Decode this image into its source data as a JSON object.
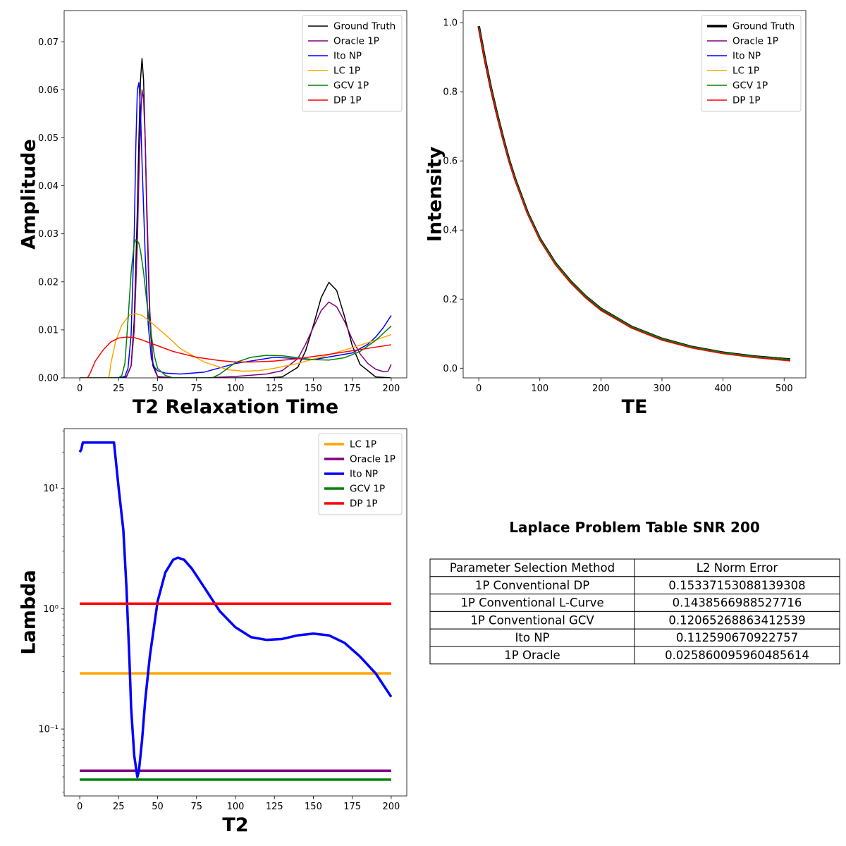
{
  "chart_data": [
    {
      "type": "line",
      "xlabel": "T2 Relaxation Time",
      "ylabel": "Amplitude",
      "xlim": [
        -10,
        210
      ],
      "ylim": [
        0,
        0.0765
      ],
      "xticks": [
        0,
        25,
        50,
        75,
        100,
        125,
        150,
        175,
        200
      ],
      "xtick_labels": [
        "0",
        "25",
        "50",
        "75",
        "100",
        "125",
        "150",
        "175",
        "200"
      ],
      "yticks": [
        0,
        0.01,
        0.02,
        0.03,
        0.04,
        0.05,
        0.06,
        0.07
      ],
      "ytick_labels": [
        "0.00",
        "0.01",
        "0.02",
        "0.03",
        "0.04",
        "0.05",
        "0.06",
        "0.07"
      ],
      "legend_position": "top-right",
      "series": [
        {
          "name": "Ground Truth",
          "color": "#000000",
          "x": [
            0,
            25,
            30,
            33,
            35,
            37,
            38,
            39,
            40,
            41,
            42,
            43,
            45,
            47,
            50,
            60,
            80,
            100,
            120,
            130,
            140,
            145,
            150,
            155,
            160,
            165,
            170,
            175,
            180,
            190,
            200
          ],
          "y": [
            0,
            0,
            0.0002,
            0.0025,
            0.012,
            0.035,
            0.05,
            0.062,
            0.0665,
            0.062,
            0.05,
            0.035,
            0.012,
            0.0025,
            0.0002,
            0,
            0,
            0,
            0,
            0.0002,
            0.0022,
            0.0056,
            0.0109,
            0.0167,
            0.0199,
            0.0182,
            0.0128,
            0.0067,
            0.0028,
            0.0002,
            0
          ]
        },
        {
          "name": "Oracle 1P",
          "color": "#800080",
          "x": [
            0,
            25,
            30,
            33,
            35,
            37,
            38,
            39,
            40,
            41,
            42,
            43,
            45,
            47,
            50,
            60,
            80,
            100,
            120,
            130,
            140,
            145,
            150,
            155,
            160,
            165,
            170,
            175,
            180,
            185,
            190,
            195,
            198,
            200
          ],
          "y": [
            0,
            0,
            0.0003,
            0.0025,
            0.01,
            0.028,
            0.042,
            0.053,
            0.06,
            0.058,
            0.05,
            0.037,
            0.014,
            0.003,
            0.0003,
            0,
            0,
            0.0003,
            0.0008,
            0.0015,
            0.004,
            0.007,
            0.0105,
            0.014,
            0.0158,
            0.0148,
            0.0118,
            0.008,
            0.005,
            0.003,
            0.0018,
            0.0013,
            0.0014,
            0.0028
          ]
        },
        {
          "name": "Ito NP",
          "color": "#0000ff",
          "x": [
            0,
            25,
            29,
            31,
            33,
            35,
            36,
            37,
            38,
            39,
            40,
            42,
            44,
            46,
            48,
            50,
            55,
            65,
            80,
            100,
            125,
            150,
            175,
            185,
            190,
            195,
            200
          ],
          "y": [
            0,
            0,
            0.0003,
            0.002,
            0.009,
            0.03,
            0.048,
            0.06,
            0.0615,
            0.056,
            0.045,
            0.026,
            0.011,
            0.004,
            0.0022,
            0.0015,
            0.001,
            0.0008,
            0.0012,
            0.003,
            0.0043,
            0.0038,
            0.0052,
            0.007,
            0.0085,
            0.0105,
            0.013
          ]
        },
        {
          "name": "LC 1P",
          "color": "#ffa500",
          "x": [
            0,
            18,
            19,
            20,
            23,
            27,
            32,
            36,
            40,
            45,
            55,
            65,
            80,
            95,
            105,
            115,
            125,
            140,
            160,
            180,
            200
          ],
          "y": [
            0,
            0,
            0.0005,
            0.003,
            0.0075,
            0.011,
            0.0131,
            0.0134,
            0.013,
            0.0118,
            0.009,
            0.006,
            0.0033,
            0.0017,
            0.0014,
            0.0015,
            0.002,
            0.003,
            0.0048,
            0.0068,
            0.009
          ]
        },
        {
          "name": "GCV 1P",
          "color": "#008000",
          "x": [
            0,
            25,
            27,
            29,
            31,
            33,
            35,
            36,
            37,
            38,
            39,
            41,
            43,
            45,
            48,
            50,
            55,
            60,
            85,
            90,
            95,
            100,
            110,
            120,
            130,
            140,
            150,
            160,
            170,
            180,
            190,
            200
          ],
          "y": [
            0,
            0,
            0.0005,
            0.003,
            0.012,
            0.022,
            0.028,
            0.0288,
            0.0285,
            0.028,
            0.0265,
            0.022,
            0.016,
            0.011,
            0.0045,
            0.002,
            0.0005,
            0,
            0,
            0.0008,
            0.002,
            0.0032,
            0.0043,
            0.0047,
            0.0046,
            0.0042,
            0.0038,
            0.0037,
            0.0042,
            0.0055,
            0.0078,
            0.0108
          ]
        },
        {
          "name": "DP 1P",
          "color": "#ff0000",
          "x": [
            0,
            4,
            5,
            7,
            10,
            15,
            20,
            25,
            30,
            35,
            40,
            50,
            60,
            75,
            90,
            100,
            110,
            125,
            140,
            160,
            180,
            200
          ],
          "y": [
            -0.0012,
            -0.0005,
            0,
            0.0012,
            0.0035,
            0.0058,
            0.0075,
            0.0083,
            0.0085,
            0.0084,
            0.0079,
            0.0067,
            0.0055,
            0.0043,
            0.0036,
            0.0033,
            0.0033,
            0.0035,
            0.004,
            0.0049,
            0.0059,
            0.0069
          ]
        }
      ]
    },
    {
      "type": "line",
      "xlabel": "TE",
      "ylabel": "Intensity",
      "xlim": [
        -25.5,
        535.5
      ],
      "ylim": [
        -0.028,
        1.035
      ],
      "xticks": [
        0,
        100,
        200,
        300,
        400,
        500
      ],
      "xtick_labels": [
        "0",
        "100",
        "200",
        "300",
        "400",
        "500"
      ],
      "yticks": [
        0,
        0.2,
        0.4,
        0.6,
        0.8,
        1.0
      ],
      "ytick_labels": [
        "0.0",
        "0.2",
        "0.4",
        "0.6",
        "0.8",
        "1.0"
      ],
      "legend_position": "top-right",
      "series": [
        {
          "name": "Ground Truth",
          "color": "#000000",
          "width": 3.5,
          "x": [
            0,
            10,
            20,
            30,
            40,
            50,
            60,
            80,
            100,
            125,
            150,
            175,
            200,
            250,
            300,
            350,
            400,
            450,
            510
          ],
          "y": [
            0.99,
            0.895,
            0.81,
            0.735,
            0.665,
            0.6,
            0.545,
            0.45,
            0.375,
            0.305,
            0.252,
            0.208,
            0.172,
            0.12,
            0.085,
            0.061,
            0.045,
            0.034,
            0.025
          ]
        },
        {
          "name": "Oracle 1P",
          "color": "#800080",
          "width": 1.5,
          "x": [
            0,
            10,
            20,
            30,
            40,
            50,
            60,
            80,
            100,
            125,
            150,
            175,
            200,
            250,
            300,
            350,
            400,
            450,
            510
          ],
          "y": [
            0.99,
            0.895,
            0.81,
            0.735,
            0.665,
            0.6,
            0.545,
            0.45,
            0.375,
            0.305,
            0.252,
            0.208,
            0.172,
            0.12,
            0.085,
            0.061,
            0.045,
            0.034,
            0.025
          ]
        },
        {
          "name": "Ito NP",
          "color": "#0000ff",
          "width": 1.5,
          "x": [
            0,
            10,
            20,
            30,
            40,
            50,
            60,
            80,
            100,
            125,
            150,
            175,
            200,
            250,
            300,
            350,
            400,
            450,
            510
          ],
          "y": [
            0.99,
            0.895,
            0.81,
            0.735,
            0.665,
            0.6,
            0.545,
            0.45,
            0.375,
            0.305,
            0.252,
            0.208,
            0.172,
            0.12,
            0.085,
            0.061,
            0.045,
            0.034,
            0.025
          ]
        },
        {
          "name": "LC 1P",
          "color": "#ffa500",
          "width": 1.5,
          "x": [
            0,
            10,
            20,
            30,
            40,
            50,
            60,
            80,
            100,
            125,
            150,
            175,
            200,
            250,
            300,
            350,
            400,
            450,
            510
          ],
          "y": [
            0.99,
            0.895,
            0.81,
            0.735,
            0.665,
            0.6,
            0.545,
            0.45,
            0.375,
            0.305,
            0.252,
            0.208,
            0.172,
            0.12,
            0.085,
            0.061,
            0.045,
            0.034,
            0.025
          ]
        },
        {
          "name": "GCV 1P",
          "color": "#008000",
          "width": 1.5,
          "x": [
            0,
            10,
            20,
            30,
            40,
            50,
            60,
            80,
            100,
            125,
            150,
            175,
            200,
            250,
            300,
            350,
            400,
            450,
            510
          ],
          "y": [
            0.99,
            0.895,
            0.81,
            0.735,
            0.665,
            0.6,
            0.545,
            0.45,
            0.375,
            0.305,
            0.252,
            0.208,
            0.172,
            0.12,
            0.085,
            0.061,
            0.045,
            0.034,
            0.025
          ]
        },
        {
          "name": "DP 1P",
          "color": "#ff0000",
          "width": 1.5,
          "x": [
            0,
            10,
            20,
            30,
            40,
            50,
            60,
            80,
            100,
            125,
            150,
            175,
            200,
            250,
            300,
            350,
            400,
            450,
            510
          ],
          "y": [
            0.985,
            0.89,
            0.805,
            0.73,
            0.66,
            0.595,
            0.54,
            0.445,
            0.37,
            0.3,
            0.247,
            0.203,
            0.167,
            0.116,
            0.081,
            0.058,
            0.042,
            0.031,
            0.021
          ]
        }
      ]
    },
    {
      "type": "line",
      "xlabel": "T2",
      "ylabel": "Lambda",
      "xscale": "linear",
      "yscale": "log",
      "xlim": [
        -10,
        210
      ],
      "ylim": [
        0.0278,
        31.3
      ],
      "xticks": [
        0,
        25,
        50,
        75,
        100,
        125,
        150,
        175,
        200
      ],
      "xtick_labels": [
        "0",
        "25",
        "50",
        "75",
        "100",
        "125",
        "150",
        "175",
        "200"
      ],
      "yticks": [
        0.1,
        1,
        10
      ],
      "ytick_labels": [
        "10⁻¹",
        "10⁰",
        "10¹"
      ],
      "legend_position": "top-right",
      "series": [
        {
          "name": "LC 1P",
          "color": "#ffa500",
          "x": [
            0,
            200
          ],
          "y": [
            0.29,
            0.29
          ]
        },
        {
          "name": "Oracle 1P",
          "color": "#800080",
          "x": [
            0,
            200
          ],
          "y": [
            0.045,
            0.045
          ]
        },
        {
          "name": "Ito NP",
          "color": "#0000ff",
          "x": [
            0,
            1,
            2,
            10,
            20,
            22,
            25,
            28,
            30,
            32,
            33,
            35,
            37,
            38,
            40,
            42,
            45,
            50,
            55,
            60,
            63,
            67,
            72,
            80,
            90,
            100,
            110,
            120,
            130,
            140,
            150,
            160,
            170,
            180,
            190,
            200
          ],
          "y": [
            20,
            21,
            24,
            24,
            24,
            24,
            10,
            4.5,
            1.5,
            0.35,
            0.15,
            0.06,
            0.04,
            0.045,
            0.08,
            0.17,
            0.4,
            1.15,
            2.0,
            2.55,
            2.65,
            2.55,
            2.15,
            1.5,
            0.95,
            0.7,
            0.58,
            0.55,
            0.56,
            0.6,
            0.62,
            0.6,
            0.52,
            0.4,
            0.29,
            0.185
          ]
        },
        {
          "name": "GCV 1P",
          "color": "#008000",
          "x": [
            0,
            200
          ],
          "y": [
            0.038,
            0.038
          ]
        },
        {
          "name": "DP 1P",
          "color": "#ff0000",
          "x": [
            0,
            200
          ],
          "y": [
            1.1,
            1.1
          ]
        }
      ]
    },
    {
      "type": "table",
      "title": "Laplace Problem Table SNR 200",
      "columns": [
        "Parameter Selection Method",
        "L2 Norm Error"
      ],
      "rows": [
        [
          "1P Conventional DP",
          "0.15337153088139308"
        ],
        [
          "1P Conventional L-Curve",
          "0.1438566988527716"
        ],
        [
          "1P Conventional GCV",
          "0.12065268863412539"
        ],
        [
          "Ito NP",
          "0.112590670922757"
        ],
        [
          "1P Oracle",
          "0.025860095960485614"
        ]
      ]
    }
  ]
}
